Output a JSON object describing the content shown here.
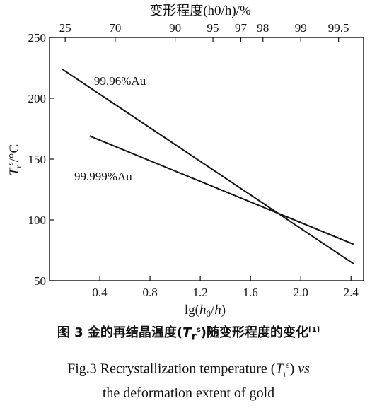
{
  "chart_data": {
    "type": "line",
    "title": "",
    "xlabel": "lg(h0/h)",
    "ylabel": "Tr^s/°C",
    "xlim": [
      0.0,
      2.5
    ],
    "ylim": [
      50,
      250
    ],
    "x_ticks": [
      0.4,
      0.8,
      1.2,
      1.6,
      2.0,
      2.4
    ],
    "x_tick_labels": [
      "0.4",
      "0.8",
      "1.2",
      "1.6",
      "2.0",
      "2.4"
    ],
    "y_ticks": [
      50,
      100,
      150,
      200,
      250
    ],
    "y_tick_labels": [
      "50",
      "100",
      "150",
      "200",
      "250"
    ],
    "top_axis": {
      "label": "变形程度(h0/h)/%",
      "ticks": [
        {
          "label": "25",
          "x": 0.125
        },
        {
          "label": "70",
          "x": 0.523
        },
        {
          "label": "90",
          "x": 1.0
        },
        {
          "label": "95",
          "x": 1.301
        },
        {
          "label": "97",
          "x": 1.523
        },
        {
          "label": "98",
          "x": 1.699
        },
        {
          "label": "99",
          "x": 2.0
        },
        {
          "label": "99.5",
          "x": 2.301
        }
      ]
    },
    "grid": false,
    "series": [
      {
        "name": "99.96%Au",
        "x": [
          0.1,
          2.42
        ],
        "y": [
          224,
          64
        ]
      },
      {
        "name": "99.999%Au",
        "x": [
          0.32,
          2.42
        ],
        "y": [
          169,
          80
        ]
      }
    ]
  },
  "caption": {
    "zh_prefix": "图 3  金的再结晶温度(",
    "zh_T": "T",
    "zh_sub": "r",
    "zh_sup": "s",
    "zh_suffix": ")随变形程度的变化",
    "zh_ref": "[1]",
    "en_line1": "Fig.3 Recrystallization temperature (Tr^s) vs",
    "en_line2": "the deformation extent of gold"
  }
}
